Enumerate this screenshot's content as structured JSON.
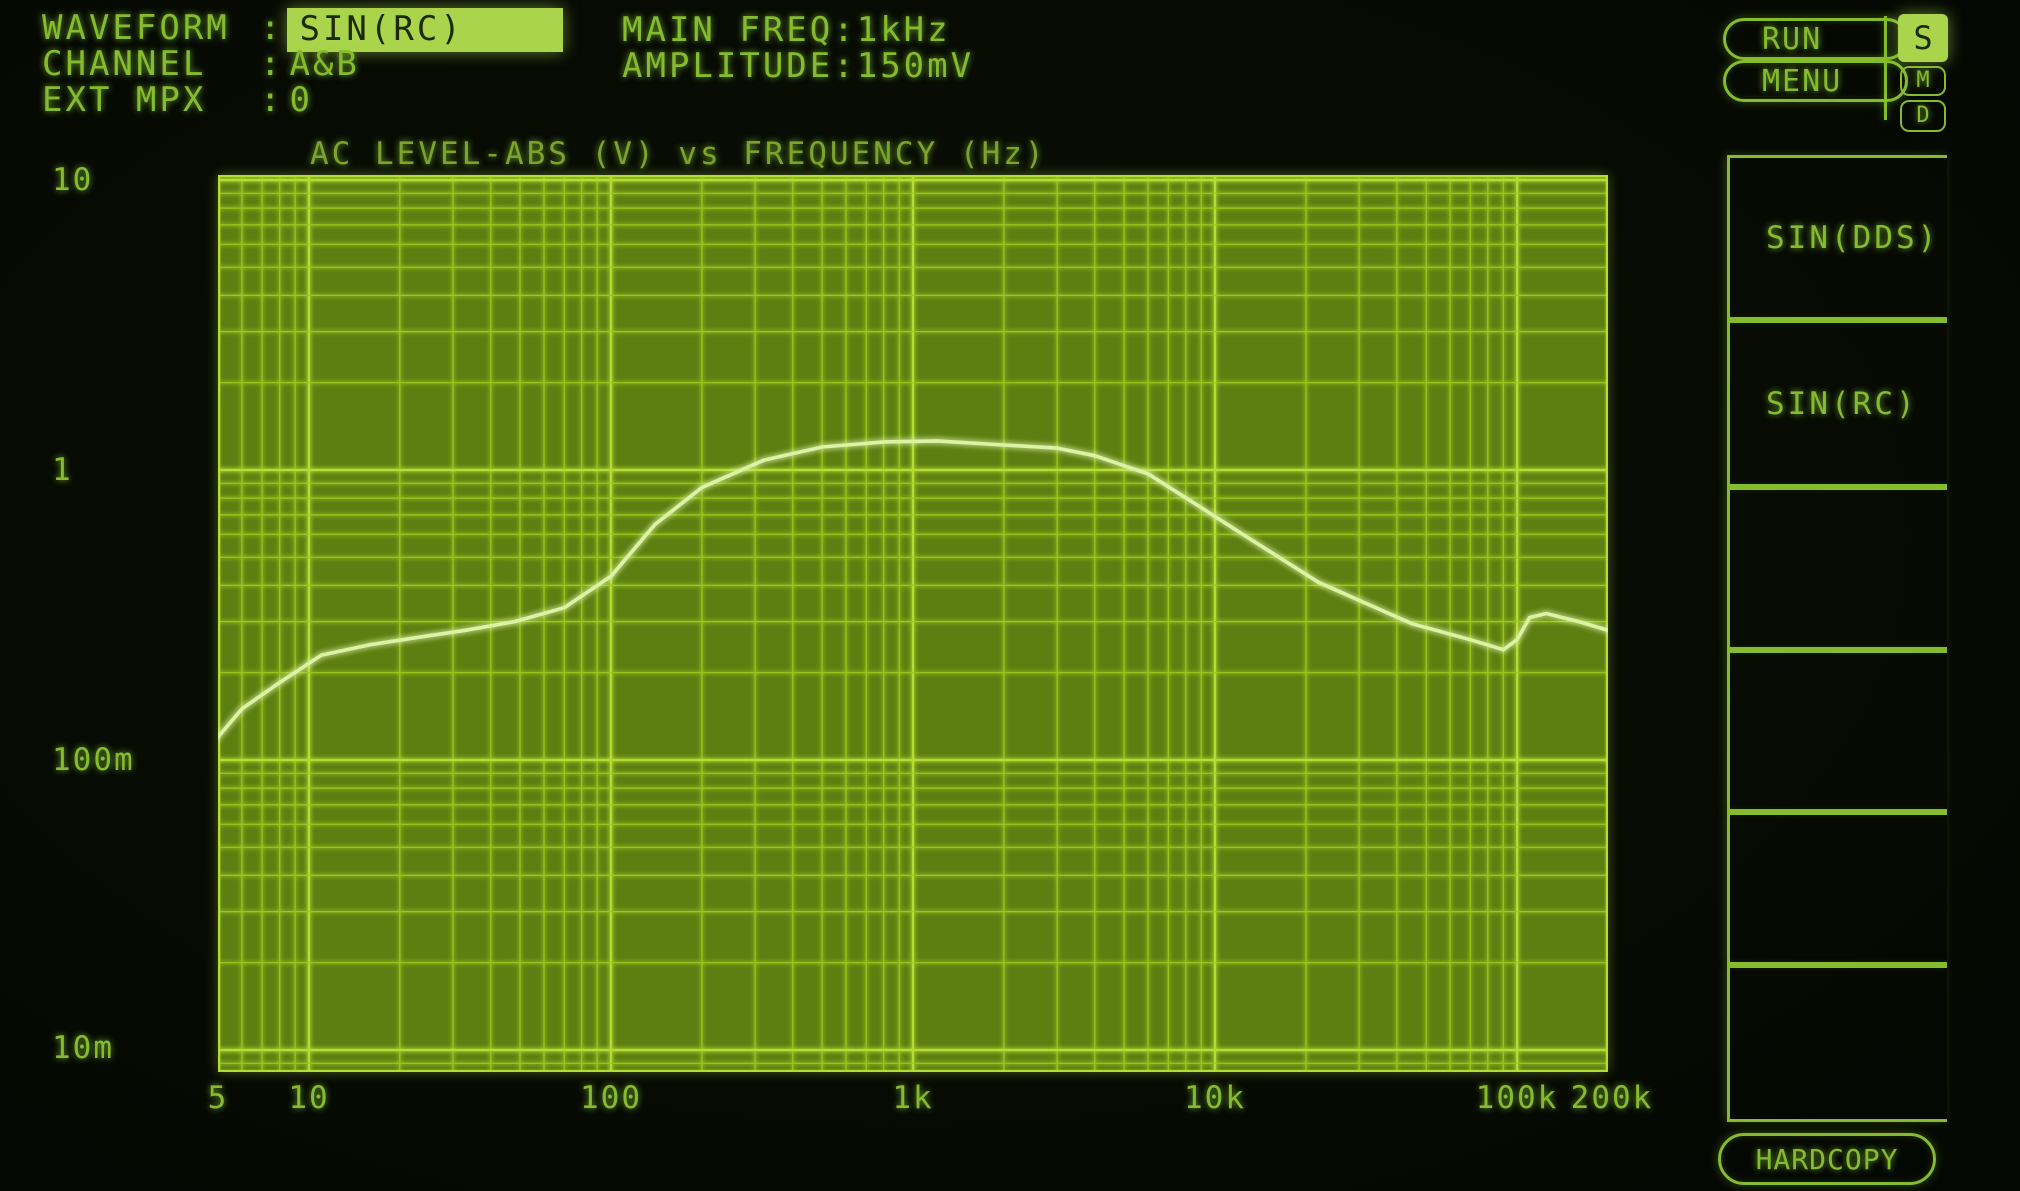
{
  "colors": {
    "screen-bg": "#070b03",
    "ui-green": "#85bb2c",
    "title-green": "#7ea32a",
    "bright-fill": "#a9d44c",
    "inverted-text": "#1b2a02",
    "plot-bg": "#5d7f12",
    "grid-line": "#9cc91e",
    "grid-major": "#b3dd33",
    "curve": "#dcf2a4"
  },
  "header": {
    "colon": ":",
    "rows": [
      {
        "label": "WAVEFORM",
        "value": "SIN(RC)",
        "highlighted": true
      },
      {
        "label": "CHANNEL",
        "value": "A&B",
        "highlighted": false
      },
      {
        "label": "EXT MPX",
        "value": "0",
        "highlighted": false
      }
    ],
    "main_freq": {
      "label": "MAIN FREQ",
      "value": "1kHz"
    },
    "amplitude": {
      "label": "AMPLITUDE",
      "value": "150mV"
    }
  },
  "top_right": {
    "run_label": "RUN",
    "menu_label": "MENU",
    "indicators": [
      {
        "label": "S",
        "state": "active"
      },
      {
        "label": "M",
        "state": "normal"
      },
      {
        "label": "D",
        "state": "normal"
      }
    ]
  },
  "softkeys": {
    "items": [
      {
        "label": "SIN(DDS)"
      },
      {
        "label": "SIN(RC)"
      },
      {
        "label": ""
      },
      {
        "label": ""
      },
      {
        "label": ""
      },
      {
        "label": ""
      }
    ],
    "hardcopy_label": "HARDCOPY"
  },
  "chart_data": {
    "type": "line",
    "title": "AC LEVEL-ABS (V) vs FREQUENCY (Hz)",
    "x_axis_label": "FREQUENCY (Hz)",
    "y_axis_label": "AC LEVEL-ABS (V)",
    "x_scale": "log",
    "y_scale": "log",
    "x_range_hz": [
      5,
      200000
    ],
    "y_range_v": [
      0.0084,
      10
    ],
    "x_tick_labels": [
      "5",
      "10",
      "100",
      "1k",
      "10k",
      "100k",
      "200k"
    ],
    "x_tick_values": [
      5,
      10,
      100,
      1000,
      10000,
      100000,
      200000
    ],
    "y_tick_labels": [
      "10",
      "1",
      "100m",
      "10m"
    ],
    "y_tick_values": [
      10,
      1,
      0.1,
      0.01
    ],
    "grid": "log minor + major, both axes",
    "legend": "none",
    "series": [
      {
        "name": "AC LEVEL-ABS (V)",
        "points": [
          [
            5,
            0.12
          ],
          [
            6,
            0.15
          ],
          [
            8,
            0.185
          ],
          [
            11,
            0.23
          ],
          [
            16,
            0.25
          ],
          [
            23,
            0.265
          ],
          [
            33,
            0.28
          ],
          [
            48,
            0.3
          ],
          [
            70,
            0.335
          ],
          [
            100,
            0.43
          ],
          [
            140,
            0.65
          ],
          [
            200,
            0.87
          ],
          [
            320,
            1.08
          ],
          [
            500,
            1.2
          ],
          [
            800,
            1.25
          ],
          [
            1200,
            1.26
          ],
          [
            2000,
            1.22
          ],
          [
            3000,
            1.19
          ],
          [
            4000,
            1.12
          ],
          [
            6000,
            0.97
          ],
          [
            8500,
            0.77
          ],
          [
            13000,
            0.58
          ],
          [
            22000,
            0.41
          ],
          [
            33000,
            0.34
          ],
          [
            45000,
            0.295
          ],
          [
            70000,
            0.26
          ],
          [
            90000,
            0.24
          ],
          [
            100000,
            0.26
          ],
          [
            110000,
            0.31
          ],
          [
            125000,
            0.32
          ],
          [
            160000,
            0.3
          ],
          [
            200000,
            0.28
          ]
        ]
      }
    ]
  }
}
